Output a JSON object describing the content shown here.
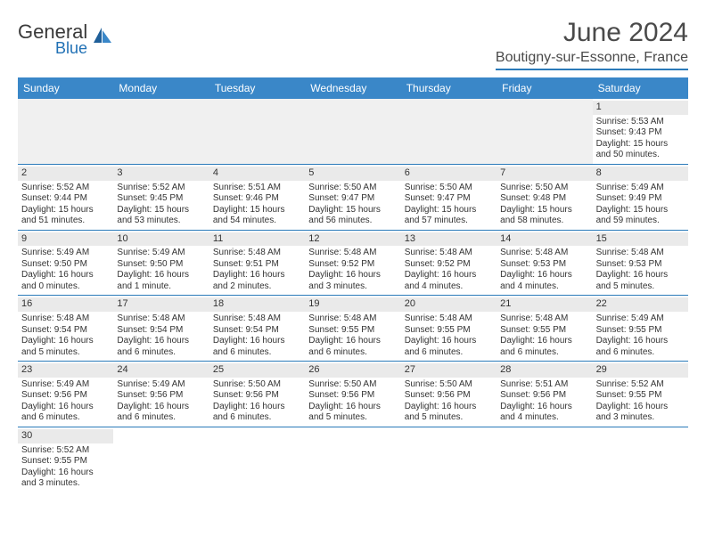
{
  "brand": {
    "general": "General",
    "blue": "Blue"
  },
  "header": {
    "month_title": "June 2024",
    "location": "Boutigny-sur-Essonne, France"
  },
  "colors": {
    "header_bg": "#3a87c8",
    "header_text": "#ffffff",
    "rule": "#2a7ab9",
    "daynum_bg": "#eaeaea",
    "blank_bg": "#f0f0f0",
    "text": "#333333",
    "brand_blue": "#2171b5"
  },
  "daynames": [
    "Sunday",
    "Monday",
    "Tuesday",
    "Wednesday",
    "Thursday",
    "Friday",
    "Saturday"
  ],
  "weeks": [
    [
      null,
      null,
      null,
      null,
      null,
      null,
      {
        "d": "1",
        "sr": "5:53 AM",
        "ss": "9:43 PM",
        "dl": "15 hours and 50 minutes."
      }
    ],
    [
      {
        "d": "2",
        "sr": "5:52 AM",
        "ss": "9:44 PM",
        "dl": "15 hours and 51 minutes."
      },
      {
        "d": "3",
        "sr": "5:52 AM",
        "ss": "9:45 PM",
        "dl": "15 hours and 53 minutes."
      },
      {
        "d": "4",
        "sr": "5:51 AM",
        "ss": "9:46 PM",
        "dl": "15 hours and 54 minutes."
      },
      {
        "d": "5",
        "sr": "5:50 AM",
        "ss": "9:47 PM",
        "dl": "15 hours and 56 minutes."
      },
      {
        "d": "6",
        "sr": "5:50 AM",
        "ss": "9:47 PM",
        "dl": "15 hours and 57 minutes."
      },
      {
        "d": "7",
        "sr": "5:50 AM",
        "ss": "9:48 PM",
        "dl": "15 hours and 58 minutes."
      },
      {
        "d": "8",
        "sr": "5:49 AM",
        "ss": "9:49 PM",
        "dl": "15 hours and 59 minutes."
      }
    ],
    [
      {
        "d": "9",
        "sr": "5:49 AM",
        "ss": "9:50 PM",
        "dl": "16 hours and 0 minutes."
      },
      {
        "d": "10",
        "sr": "5:49 AM",
        "ss": "9:50 PM",
        "dl": "16 hours and 1 minute."
      },
      {
        "d": "11",
        "sr": "5:48 AM",
        "ss": "9:51 PM",
        "dl": "16 hours and 2 minutes."
      },
      {
        "d": "12",
        "sr": "5:48 AM",
        "ss": "9:52 PM",
        "dl": "16 hours and 3 minutes."
      },
      {
        "d": "13",
        "sr": "5:48 AM",
        "ss": "9:52 PM",
        "dl": "16 hours and 4 minutes."
      },
      {
        "d": "14",
        "sr": "5:48 AM",
        "ss": "9:53 PM",
        "dl": "16 hours and 4 minutes."
      },
      {
        "d": "15",
        "sr": "5:48 AM",
        "ss": "9:53 PM",
        "dl": "16 hours and 5 minutes."
      }
    ],
    [
      {
        "d": "16",
        "sr": "5:48 AM",
        "ss": "9:54 PM",
        "dl": "16 hours and 5 minutes."
      },
      {
        "d": "17",
        "sr": "5:48 AM",
        "ss": "9:54 PM",
        "dl": "16 hours and 6 minutes."
      },
      {
        "d": "18",
        "sr": "5:48 AM",
        "ss": "9:54 PM",
        "dl": "16 hours and 6 minutes."
      },
      {
        "d": "19",
        "sr": "5:48 AM",
        "ss": "9:55 PM",
        "dl": "16 hours and 6 minutes."
      },
      {
        "d": "20",
        "sr": "5:48 AM",
        "ss": "9:55 PM",
        "dl": "16 hours and 6 minutes."
      },
      {
        "d": "21",
        "sr": "5:48 AM",
        "ss": "9:55 PM",
        "dl": "16 hours and 6 minutes."
      },
      {
        "d": "22",
        "sr": "5:49 AM",
        "ss": "9:55 PM",
        "dl": "16 hours and 6 minutes."
      }
    ],
    [
      {
        "d": "23",
        "sr": "5:49 AM",
        "ss": "9:56 PM",
        "dl": "16 hours and 6 minutes."
      },
      {
        "d": "24",
        "sr": "5:49 AM",
        "ss": "9:56 PM",
        "dl": "16 hours and 6 minutes."
      },
      {
        "d": "25",
        "sr": "5:50 AM",
        "ss": "9:56 PM",
        "dl": "16 hours and 6 minutes."
      },
      {
        "d": "26",
        "sr": "5:50 AM",
        "ss": "9:56 PM",
        "dl": "16 hours and 5 minutes."
      },
      {
        "d": "27",
        "sr": "5:50 AM",
        "ss": "9:56 PM",
        "dl": "16 hours and 5 minutes."
      },
      {
        "d": "28",
        "sr": "5:51 AM",
        "ss": "9:56 PM",
        "dl": "16 hours and 4 minutes."
      },
      {
        "d": "29",
        "sr": "5:52 AM",
        "ss": "9:55 PM",
        "dl": "16 hours and 3 minutes."
      }
    ],
    [
      {
        "d": "30",
        "sr": "5:52 AM",
        "ss": "9:55 PM",
        "dl": "16 hours and 3 minutes."
      },
      null,
      null,
      null,
      null,
      null,
      null
    ]
  ],
  "labels": {
    "sunrise": "Sunrise:",
    "sunset": "Sunset:",
    "daylight": "Daylight:"
  }
}
